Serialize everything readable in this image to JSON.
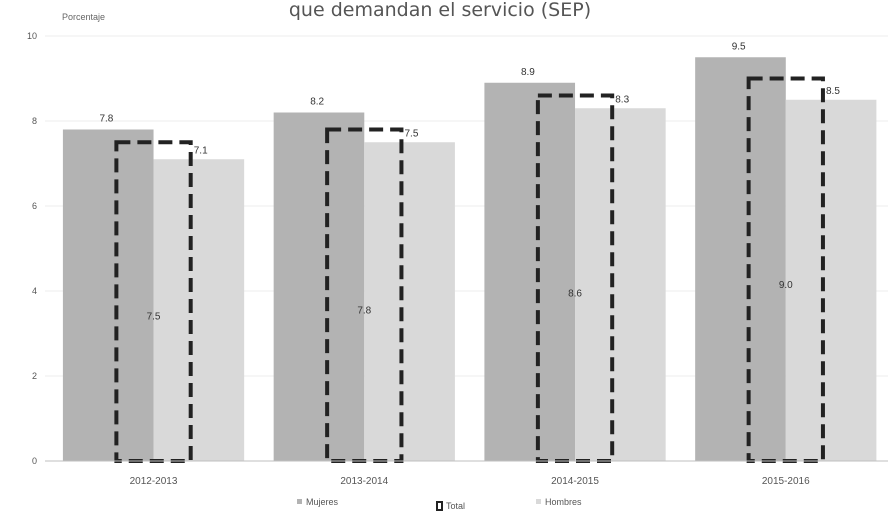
{
  "chart_data": {
    "type": "bar",
    "title": "que demandan el servicio (SEP)",
    "ylabel": "Porcentaje",
    "xlabel": "",
    "ylim": [
      0,
      10
    ],
    "yticks": [
      "0",
      "2",
      "4",
      "6",
      "8",
      "10"
    ],
    "categories": [
      "2012-2013",
      "2013-2014",
      "2014-2015",
      "2015-2016"
    ],
    "series": [
      {
        "name": "Mujeres",
        "values": [
          7.8,
          8.2,
          8.9,
          9.5
        ],
        "labels": [
          "7.8",
          "8.2",
          "8.9",
          "9.5"
        ],
        "color": "#b3b3b3",
        "style": "bar"
      },
      {
        "name": "Total",
        "values": [
          7.5,
          7.8,
          8.6,
          9.0
        ],
        "labels": [
          "7.5",
          "7.8",
          "8.6",
          "9.0"
        ],
        "color": "#222222",
        "style": "dashed-outline"
      },
      {
        "name": "Hombres",
        "values": [
          7.1,
          7.5,
          8.3,
          8.5
        ],
        "labels": [
          "7.1",
          "7.5",
          "8.3",
          "8.5"
        ],
        "color": "#d9d9d9",
        "style": "bar"
      }
    ],
    "grid": true,
    "legend_position": "bottom"
  }
}
